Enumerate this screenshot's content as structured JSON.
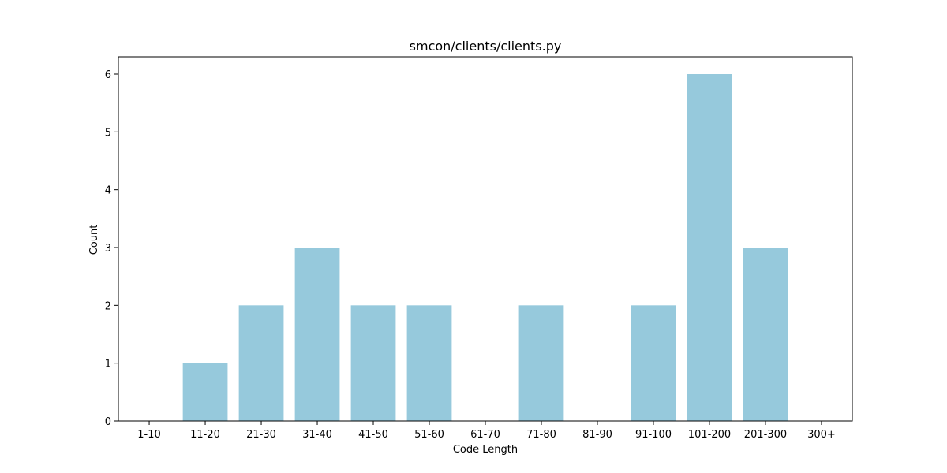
{
  "chart_data": {
    "type": "bar",
    "title": "smcon/clients/clients.py",
    "xlabel": "Code Length",
    "ylabel": "Count",
    "categories": [
      "1-10",
      "11-20",
      "21-30",
      "31-40",
      "41-50",
      "51-60",
      "61-70",
      "71-80",
      "81-90",
      "91-100",
      "101-200",
      "201-300",
      "300+"
    ],
    "values": [
      0,
      1,
      2,
      3,
      2,
      2,
      0,
      2,
      0,
      2,
      6,
      3,
      0
    ],
    "ylim": [
      0,
      6.3
    ],
    "yticks": [
      0,
      1,
      2,
      3,
      4,
      5,
      6
    ],
    "grid": false,
    "bar_color": "#96c9dc"
  }
}
